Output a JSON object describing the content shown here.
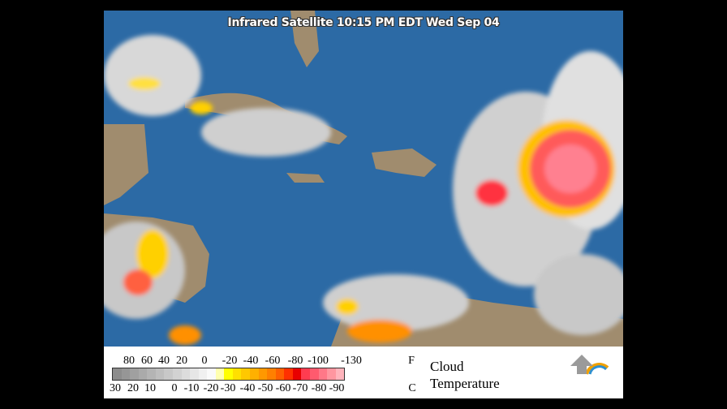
{
  "title": "Infrared Satellite 10:15 PM EDT Wed Sep 04",
  "legend": {
    "fahrenheit_ticks": [
      "80",
      "60",
      "40",
      "20",
      "0",
      "-20",
      "-40",
      "-60",
      "-80",
      "-100",
      "-130"
    ],
    "fahrenheit_unit": "F",
    "celsius_ticks": [
      "30",
      "20",
      "10",
      "0",
      "-10",
      "-20",
      "-30",
      "-40",
      "-50",
      "-60",
      "-70",
      "-80",
      "-90"
    ],
    "celsius_unit": "C",
    "label_line1": "Cloud",
    "label_line2": "Temperature",
    "colors": [
      "#8c8c8c",
      "#969696",
      "#a0a0a0",
      "#aaaaaa",
      "#b4b4b4",
      "#bebebe",
      "#c8c8c8",
      "#d2d2d2",
      "#dcdcdc",
      "#e6e6e6",
      "#f0f0f0",
      "#fafafa",
      "#ffffb0",
      "#ffff00",
      "#ffe000",
      "#ffc800",
      "#ffb000",
      "#ff9800",
      "#ff8000",
      "#ff6000",
      "#ff3000",
      "#e80000",
      "#ff3c50",
      "#ff5a6e",
      "#ff7888",
      "#ff96a0",
      "#ffb4bc"
    ]
  },
  "colors": {
    "ocean": "#2c6aa5",
    "land": "#a08c6e",
    "storm": "#ff5060"
  }
}
